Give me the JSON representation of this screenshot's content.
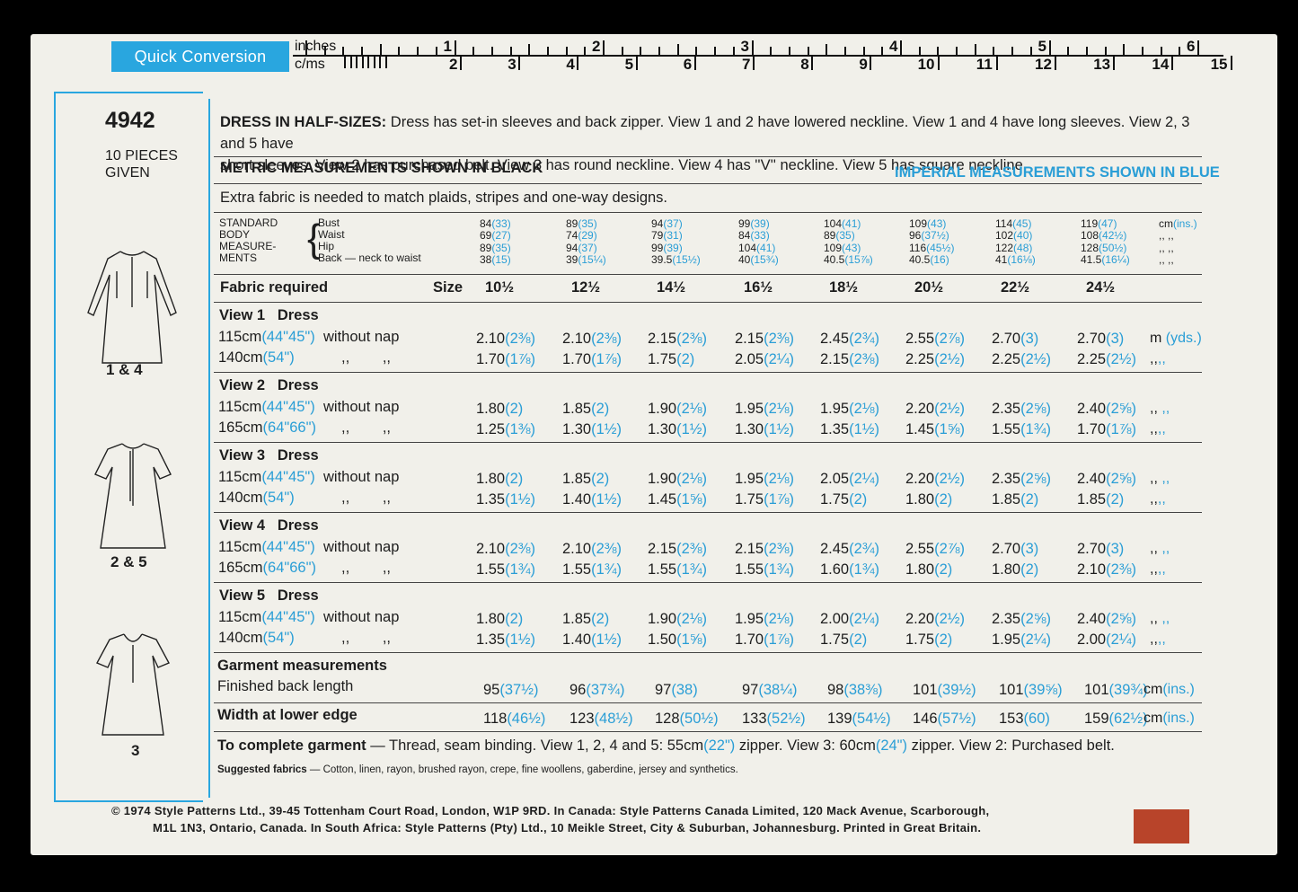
{
  "quick_conversion": {
    "label": "Quick Conversion",
    "inches_label": "inches",
    "cms_label": "c/ms",
    "inch_numbers": [
      "1",
      "2",
      "3",
      "4",
      "5",
      "6"
    ],
    "cm_numbers": [
      "2",
      "3",
      "4",
      "5",
      "6",
      "7",
      "8",
      "9",
      "10",
      "11",
      "12",
      "13",
      "14",
      "15"
    ]
  },
  "pattern": {
    "number": "4942",
    "pieces": "10 PIECES",
    "given": "GIVEN",
    "views": [
      {
        "label": "1 & 4",
        "sleeve": "long"
      },
      {
        "label": "2 & 5",
        "sleeve": "short"
      },
      {
        "label": "3",
        "sleeve": "short"
      }
    ]
  },
  "description": {
    "title": "DRESS IN HALF-SIZES:",
    "line1": "Dress has set-in sleeves and back zipper. View 1 and 2 have lowered neckline. View 1 and 4 have long sleeves. View 2, 3 and 5 have",
    "line2": "short sleeves. View 2 has purchased belt. View 3 has round neckline. View 4 has ''V'' neckline. View 5 has square neckline."
  },
  "metric_heading": "METRIC MEASUREMENTS SHOWN IN BLACK",
  "imperial_heading": "IMPERIAL MEASUREMENTS SHOWN IN BLUE",
  "extra_fabric": "Extra fabric is needed to match plaids, stripes and one-way designs.",
  "standard": {
    "labels": [
      "STANDARD",
      "BODY",
      "MEASURE-",
      "MENTS"
    ],
    "items": [
      "Bust",
      "Waist",
      "Hip",
      "Back — neck to waist"
    ],
    "columns": [
      [
        [
          "84",
          "(33)"
        ],
        [
          "69",
          "(27)"
        ],
        [
          "89",
          "(35)"
        ],
        [
          "38",
          "(15)"
        ]
      ],
      [
        [
          "89",
          "(35)"
        ],
        [
          "74",
          "(29)"
        ],
        [
          "94",
          "(37)"
        ],
        [
          "39",
          "(15¼)"
        ]
      ],
      [
        [
          "94",
          "(37)"
        ],
        [
          "79",
          "(31)"
        ],
        [
          "99",
          "(39)"
        ],
        [
          "39.5",
          "(15½)"
        ]
      ],
      [
        [
          "99",
          "(39)"
        ],
        [
          "84",
          "(33)"
        ],
        [
          "104",
          "(41)"
        ],
        [
          "40",
          "(15¾)"
        ]
      ],
      [
        [
          "104",
          "(41)"
        ],
        [
          "89",
          "(35)"
        ],
        [
          "109",
          "(43)"
        ],
        [
          "40.5",
          "(15⅞)"
        ]
      ],
      [
        [
          "109",
          "(43)"
        ],
        [
          "96",
          "(37½)"
        ],
        [
          "116",
          "(45½)"
        ],
        [
          "40.5",
          "(16)"
        ]
      ],
      [
        [
          "114",
          "(45)"
        ],
        [
          "102",
          "(40)"
        ],
        [
          "122",
          "(48)"
        ],
        [
          "41",
          "(16⅛)"
        ]
      ],
      [
        [
          "119",
          "(47)"
        ],
        [
          "108",
          "(42½)"
        ],
        [
          "128",
          "(50½)"
        ],
        [
          "41.5",
          "(16¼)"
        ]
      ]
    ],
    "unit": "cm",
    "unit_alt": "(ins.)",
    "ditto": ",,  ,,"
  },
  "fabric_header": {
    "label": "Fabric required",
    "size_label": "Size",
    "sizes": [
      "10½",
      "12½",
      "14½",
      "16½",
      "18½",
      "20½",
      "22½",
      "24½"
    ]
  },
  "views_table": [
    {
      "title": "View 1   Dress",
      "rows": [
        {
          "width": "115cm",
          "width_alt": "(44\"45\")",
          "nap": "without nap",
          "values": [
            [
              "2.10",
              "(2⅜)"
            ],
            [
              "2.10",
              "(2⅜)"
            ],
            [
              "2.15",
              "(2⅜)"
            ],
            [
              "2.15",
              "(2⅜)"
            ],
            [
              "2.45",
              "(2¾)"
            ],
            [
              "2.55",
              "(2⅞)"
            ],
            [
              "2.70",
              "(3)"
            ],
            [
              "2.70",
              "(3)"
            ]
          ],
          "unit": "m",
          "unit_alt": "(yds.)"
        },
        {
          "width": "140cm",
          "width_alt": "(54\")",
          "nap": ",,        ,,",
          "values": [
            [
              "1.70",
              "(1⅞)"
            ],
            [
              "1.70",
              "(1⅞)"
            ],
            [
              "1.75",
              "(2)"
            ],
            [
              "2.05",
              "(2¼)"
            ],
            [
              "2.15",
              "(2⅜)"
            ],
            [
              "2.25",
              "(2½)"
            ],
            [
              "2.25",
              "(2½)"
            ],
            [
              "2.25",
              "(2½)"
            ]
          ],
          "unit": ",,",
          "unit_alt": ",,"
        }
      ]
    },
    {
      "title": "View 2   Dress",
      "rows": [
        {
          "width": "115cm",
          "width_alt": "(44\"45\")",
          "nap": "without nap",
          "values": [
            [
              "1.80",
              "(2)"
            ],
            [
              "1.85",
              "(2)"
            ],
            [
              "1.90",
              "(2⅛)"
            ],
            [
              "1.95",
              "(2⅛)"
            ],
            [
              "1.95",
              "(2⅛)"
            ],
            [
              "2.20",
              "(2½)"
            ],
            [
              "2.35",
              "(2⅝)"
            ],
            [
              "2.40",
              "(2⅝)"
            ]
          ],
          "unit": ",,",
          "unit_alt": ",,"
        },
        {
          "width": "165cm",
          "width_alt": "(64\"66\")",
          "nap": ",,        ,,",
          "values": [
            [
              "1.25",
              "(1⅜)"
            ],
            [
              "1.30",
              "(1½)"
            ],
            [
              "1.30",
              "(1½)"
            ],
            [
              "1.30",
              "(1½)"
            ],
            [
              "1.35",
              "(1½)"
            ],
            [
              "1.45",
              "(1⅝)"
            ],
            [
              "1.55",
              "(1¾)"
            ],
            [
              "1.70",
              "(1⅞)"
            ]
          ],
          "unit": ",,",
          "unit_alt": ",,"
        }
      ]
    },
    {
      "title": "View 3   Dress",
      "rows": [
        {
          "width": "115cm",
          "width_alt": "(44\"45\")",
          "nap": "without nap",
          "values": [
            [
              "1.80",
              "(2)"
            ],
            [
              "1.85",
              "(2)"
            ],
            [
              "1.90",
              "(2⅛)"
            ],
            [
              "1.95",
              "(2⅛)"
            ],
            [
              "2.05",
              "(2¼)"
            ],
            [
              "2.20",
              "(2½)"
            ],
            [
              "2.35",
              "(2⅝)"
            ],
            [
              "2.40",
              "(2⅝)"
            ]
          ],
          "unit": ",,",
          "unit_alt": ",,"
        },
        {
          "width": "140cm",
          "width_alt": "(54\")",
          "nap": ",,        ,,",
          "values": [
            [
              "1.35",
              "(1½)"
            ],
            [
              "1.40",
              "(1½)"
            ],
            [
              "1.45",
              "(1⅝)"
            ],
            [
              "1.75",
              "(1⅞)"
            ],
            [
              "1.75",
              "(2)"
            ],
            [
              "1.80",
              "(2)"
            ],
            [
              "1.85",
              "(2)"
            ],
            [
              "1.85",
              "(2)"
            ]
          ],
          "unit": ",,",
          "unit_alt": ",,"
        }
      ]
    },
    {
      "title": "View 4   Dress",
      "rows": [
        {
          "width": "115cm",
          "width_alt": "(44\"45\")",
          "nap": "without nap",
          "values": [
            [
              "2.10",
              "(2⅜)"
            ],
            [
              "2.10",
              "(2⅜)"
            ],
            [
              "2.15",
              "(2⅜)"
            ],
            [
              "2.15",
              "(2⅜)"
            ],
            [
              "2.45",
              "(2¾)"
            ],
            [
              "2.55",
              "(2⅞)"
            ],
            [
              "2.70",
              "(3)"
            ],
            [
              "2.70",
              "(3)"
            ]
          ],
          "unit": ",,",
          "unit_alt": ",,"
        },
        {
          "width": "165cm",
          "width_alt": "(64\"66\")",
          "nap": ",,        ,,",
          "values": [
            [
              "1.55",
              "(1¾)"
            ],
            [
              "1.55",
              "(1¾)"
            ],
            [
              "1.55",
              "(1¾)"
            ],
            [
              "1.55",
              "(1¾)"
            ],
            [
              "1.60",
              "(1¾)"
            ],
            [
              "1.80",
              "(2)"
            ],
            [
              "1.80",
              "(2)"
            ],
            [
              "2.10",
              "(2⅜)"
            ]
          ],
          "unit": ",,",
          "unit_alt": ",,"
        }
      ]
    },
    {
      "title": "View 5   Dress",
      "rows": [
        {
          "width": "115cm",
          "width_alt": "(44\"45\")",
          "nap": "without nap",
          "values": [
            [
              "1.80",
              "(2)"
            ],
            [
              "1.85",
              "(2)"
            ],
            [
              "1.90",
              "(2⅛)"
            ],
            [
              "1.95",
              "(2⅛)"
            ],
            [
              "2.00",
              "(2¼)"
            ],
            [
              "2.20",
              "(2½)"
            ],
            [
              "2.35",
              "(2⅝)"
            ],
            [
              "2.40",
              "(2⅝)"
            ]
          ],
          "unit": ",,",
          "unit_alt": ",,"
        },
        {
          "width": "140cm",
          "width_alt": "(54\")",
          "nap": ",,        ,,",
          "values": [
            [
              "1.35",
              "(1½)"
            ],
            [
              "1.40",
              "(1½)"
            ],
            [
              "1.50",
              "(1⅝)"
            ],
            [
              "1.70",
              "(1⅞)"
            ],
            [
              "1.75",
              "(2)"
            ],
            [
              "1.75",
              "(2)"
            ],
            [
              "1.95",
              "(2¼)"
            ],
            [
              "2.00",
              "(2¼)"
            ]
          ],
          "unit": ",,",
          "unit_alt": ",,"
        }
      ]
    }
  ],
  "garment": {
    "title": "Garment measurements",
    "finished_label": "Finished back length",
    "finished": [
      [
        "95",
        "(37½)"
      ],
      [
        "96",
        "(37¾)"
      ],
      [
        "97",
        "(38)"
      ],
      [
        "97",
        "(38¼)"
      ],
      [
        "98",
        "(38⅜)"
      ],
      [
        "101",
        "(39½)"
      ],
      [
        "101",
        "(39⅝)"
      ],
      [
        "101",
        "(39¾)"
      ]
    ],
    "finished_unit": "cm",
    "finished_unit_alt": "(ins.)",
    "width_label": "Width at lower edge",
    "width": [
      [
        "118",
        "(46½)"
      ],
      [
        "123",
        "(48½)"
      ],
      [
        "128",
        "(50½)"
      ],
      [
        "133",
        "(52½)"
      ],
      [
        "139",
        "(54½)"
      ],
      [
        "146",
        "(57½)"
      ],
      [
        "153",
        "(60)"
      ],
      [
        "159",
        "(62½)"
      ]
    ],
    "width_unit": "cm",
    "width_unit_alt": "(ins.)"
  },
  "complete": {
    "label": "To complete garment",
    "text1": " — Thread, seam binding. View 1, 2, 4 and 5: 55cm",
    "alt1": "(22\")",
    "text2": " zipper. View 3: 60cm",
    "alt2": "(24\")",
    "text3": " zipper. View 2: Purchased belt."
  },
  "suggested": {
    "label": "Suggested fabrics",
    "text": " — Cotton, linen, rayon, brushed rayon, crepe, fine woollens, gaberdine, jersey and synthetics."
  },
  "copyright": {
    "line1": "©  1974  Style Patterns Ltd., 39-45  Tottenham Court Road, London,  W1P 9RD.  In Canada: Style Patterns Canada Limited, 120 Mack Avenue, Scarborough,",
    "line2": "M1L  1N3,  Ontario,  Canada.  In South Africa: Style Patterns (Pty) Ltd.,  10  Meikle Street, City & Suburban, Johannesburg. Printed in Great Britain."
  },
  "colors": {
    "blue": "#29a6df",
    "square": "#b8442a"
  }
}
